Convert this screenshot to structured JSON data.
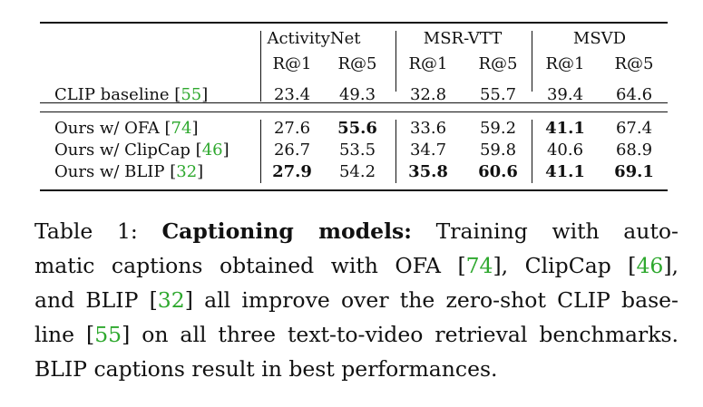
{
  "table": {
    "groups": [
      "ActivityNet",
      "MSR-VTT",
      "MSVD"
    ],
    "metrics": [
      "R@1",
      "R@5",
      "R@1",
      "R@5",
      "R@1",
      "R@5"
    ],
    "baseline": {
      "method": "CLIP baseline",
      "cite": "55",
      "values": [
        "23.4",
        "49.3",
        "32.8",
        "55.7",
        "39.4",
        "64.6"
      ]
    },
    "rows": [
      {
        "method": "Ours w/ OFA",
        "cite": "74",
        "values": [
          "27.6",
          "55.6",
          "33.6",
          "59.2",
          "41.1",
          "67.4"
        ]
      },
      {
        "method": "Ours w/ ClipCap",
        "cite": "46",
        "values": [
          "26.7",
          "53.5",
          "34.7",
          "59.8",
          "40.6",
          "68.9"
        ]
      },
      {
        "method": "Ours w/ BLIP",
        "cite": "32",
        "values": [
          "27.9",
          "54.2",
          "35.8",
          "60.6",
          "41.1",
          "69.1"
        ]
      }
    ]
  },
  "caption": {
    "label": "Table 1:",
    "title": "Captioning models:",
    "l1_a": "Training with auto-",
    "l2_a": "matic captions obtained with OFA [",
    "l2_c1": "74",
    "l2_b": "], ClipCap [",
    "l2_c2": "46",
    "l2_c": "],",
    "l3_a": "and BLIP [",
    "l3_c1": "32",
    "l3_b": "] all improve over the zero-shot CLIP base-",
    "l4_a": "line [",
    "l4_c1": "55",
    "l4_b": "] on all three text-to-video retrieval benchmarks.",
    "l5": "BLIP captions result in best performances."
  }
}
